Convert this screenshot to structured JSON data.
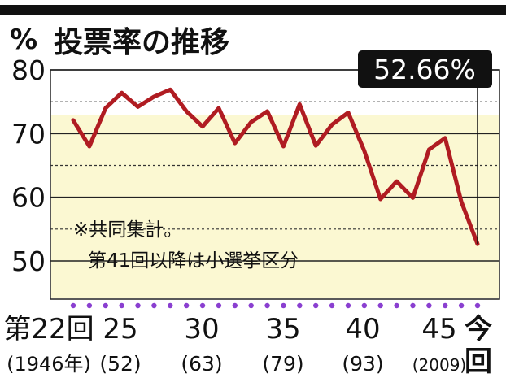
{
  "chart_data": {
    "type": "line",
    "title": "投票率の推移",
    "y_unit": "%",
    "ylim": [
      45,
      82
    ],
    "yticks": [
      "50",
      "60",
      "70",
      "80"
    ],
    "grid": true,
    "highlight_value_label": "52.66%",
    "notes": [
      "※共同集計。",
      "第41回以降は小選挙区分"
    ],
    "x_labels": [
      {
        "top": "第22回",
        "bottom": "(1946年)"
      },
      {
        "top": "25",
        "bottom": "(52)"
      },
      {
        "top": "30",
        "bottom": "(63)"
      },
      {
        "top": "35",
        "bottom": "(79)"
      },
      {
        "top": "40",
        "bottom": "(93)"
      },
      {
        "top": "45",
        "bottom": "(2009)"
      },
      {
        "top": "今",
        "bottom": "回"
      }
    ],
    "elections": [
      22,
      23,
      24,
      25,
      26,
      27,
      28,
      29,
      30,
      31,
      32,
      33,
      34,
      35,
      36,
      37,
      38,
      39,
      40,
      41,
      42,
      43,
      44,
      45,
      46,
      47
    ],
    "values": [
      72.1,
      68.0,
      74.0,
      76.4,
      74.2,
      75.8,
      76.9,
      73.5,
      71.1,
      74.0,
      68.5,
      71.8,
      73.5,
      68.0,
      74.6,
      68.1,
      71.4,
      73.3,
      67.3,
      59.7,
      62.5,
      59.9,
      67.5,
      69.3,
      59.3,
      52.66
    ]
  }
}
